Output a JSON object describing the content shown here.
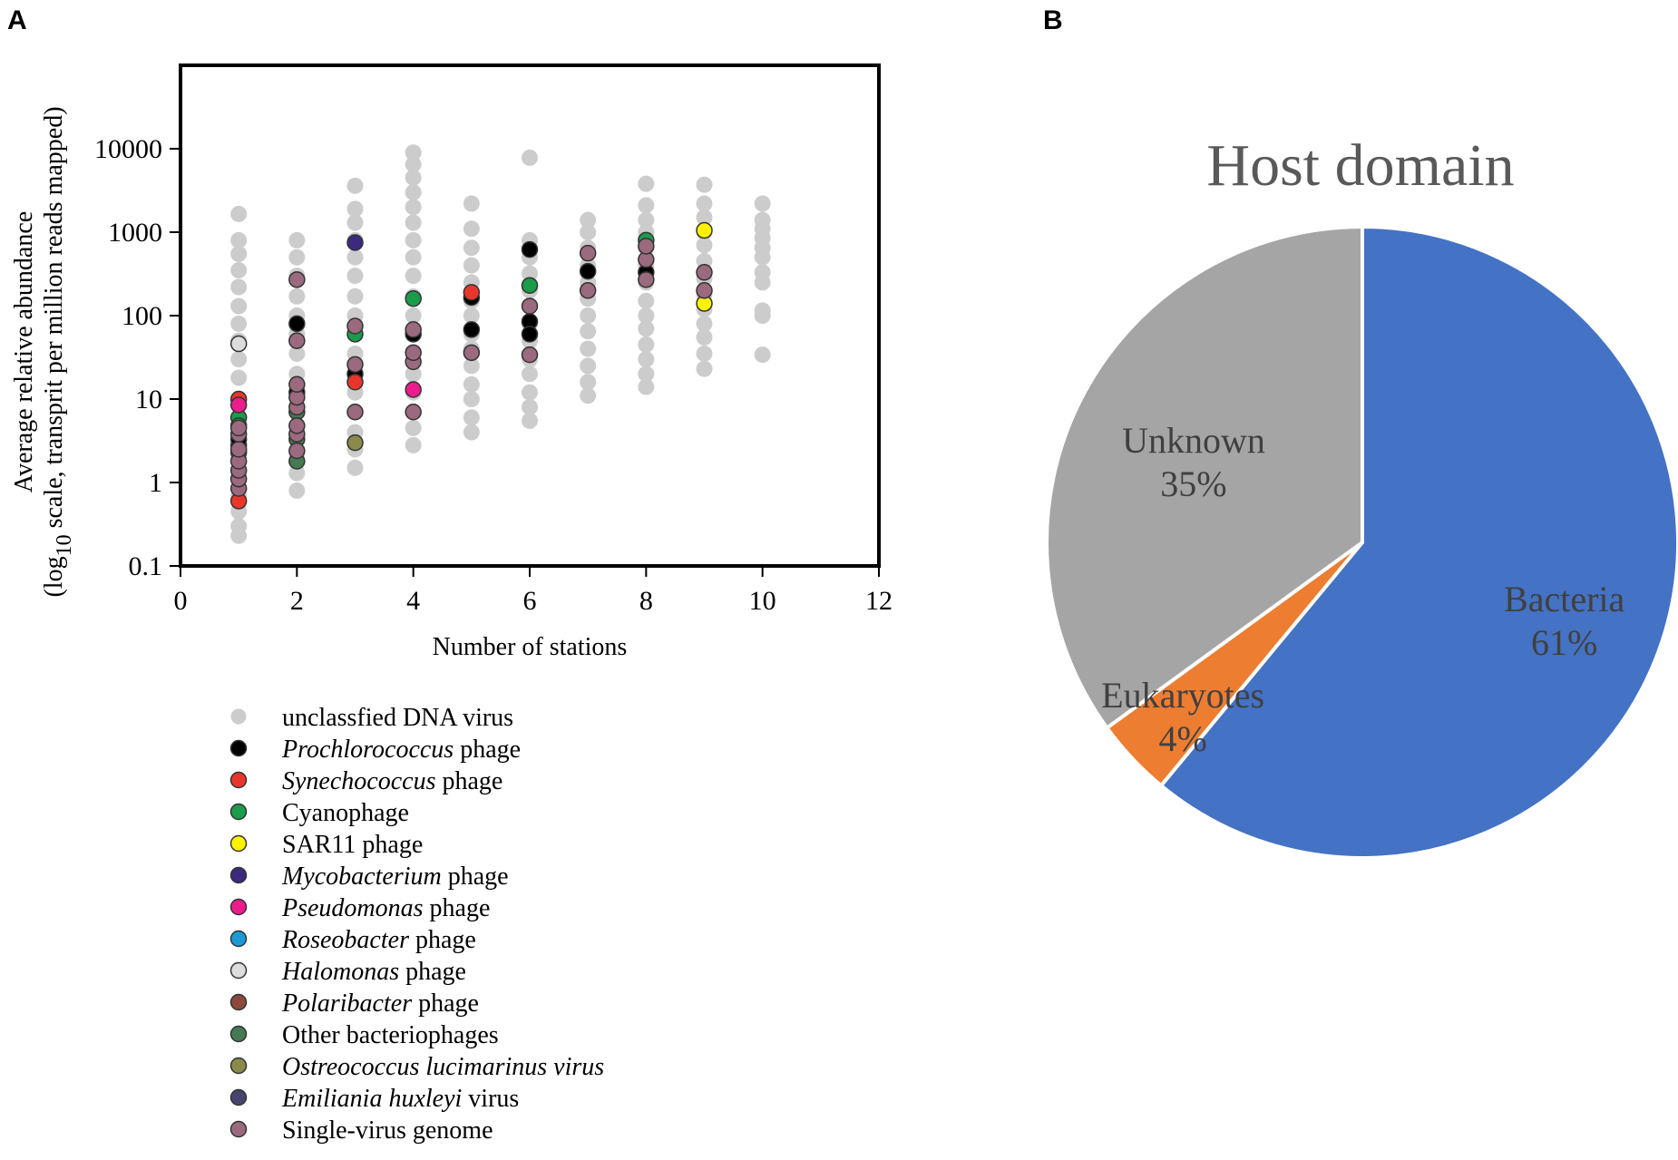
{
  "panels": {
    "a": "A",
    "b": "B"
  },
  "chart_data": [
    {
      "type": "scatter",
      "panel": "A",
      "title": "",
      "xlabel": "Number of stations",
      "ylabel_line1": "Average relative abundance",
      "ylabel_line2_prefix": "(log",
      "ylabel_line2_sub": "10",
      "ylabel_line2_rest": " scale, transprit per million reads mapped)",
      "yscale": "log",
      "xlim": [
        0,
        12
      ],
      "ylim": [
        0.1,
        100000
      ],
      "xticks": [
        0,
        2,
        4,
        6,
        8,
        10,
        12
      ],
      "xtick_labels": [
        "0",
        "2",
        "4",
        "6",
        "8",
        "10",
        "12"
      ],
      "yticks": [
        0.1,
        1,
        10,
        100,
        1000,
        10000
      ],
      "ytick_labels": [
        "0.1",
        "1",
        "10",
        "100",
        "1000",
        "10000"
      ],
      "legend_position": "below",
      "series": [
        {
          "name": "unclassfied DNA virus",
          "name_italic": "",
          "name_rest": "unclassfied DNA virus",
          "color": "#cccccc",
          "stroke": "none",
          "points": [
            [
              1,
              0.23
            ],
            [
              1,
              0.3
            ],
            [
              1,
              0.45
            ],
            [
              1,
              0.7
            ],
            [
              1,
              1.2
            ],
            [
              1,
              2
            ],
            [
              1,
              3.5
            ],
            [
              1,
              6
            ],
            [
              1,
              10
            ],
            [
              1,
              18
            ],
            [
              1,
              30
            ],
            [
              1,
              50
            ],
            [
              1,
              80
            ],
            [
              1,
              130
            ],
            [
              1,
              220
            ],
            [
              1,
              350
            ],
            [
              1,
              550
            ],
            [
              1,
              800
            ],
            [
              1,
              1650
            ],
            [
              2,
              0.8
            ],
            [
              2,
              1.3
            ],
            [
              2,
              2.2
            ],
            [
              2,
              4
            ],
            [
              2,
              7
            ],
            [
              2,
              12
            ],
            [
              2,
              20
            ],
            [
              2,
              35
            ],
            [
              2,
              60
            ],
            [
              2,
              100
            ],
            [
              2,
              170
            ],
            [
              2,
              300
            ],
            [
              2,
              500
            ],
            [
              2,
              800
            ],
            [
              3,
              1.5
            ],
            [
              3,
              2.5
            ],
            [
              3,
              4
            ],
            [
              3,
              7
            ],
            [
              3,
              12
            ],
            [
              3,
              20
            ],
            [
              3,
              35
            ],
            [
              3,
              60
            ],
            [
              3,
              100
            ],
            [
              3,
              170
            ],
            [
              3,
              300
            ],
            [
              3,
              500
            ],
            [
              3,
              800
            ],
            [
              3,
              1300
            ],
            [
              3,
              1900
            ],
            [
              3,
              3600
            ],
            [
              4,
              2.8
            ],
            [
              4,
              4.5
            ],
            [
              4,
              7
            ],
            [
              4,
              12
            ],
            [
              4,
              20
            ],
            [
              4,
              35
            ],
            [
              4,
              60
            ],
            [
              4,
              100
            ],
            [
              4,
              170
            ],
            [
              4,
              300
            ],
            [
              4,
              500
            ],
            [
              4,
              800
            ],
            [
              4,
              1300
            ],
            [
              4,
              2000
            ],
            [
              4,
              3000
            ],
            [
              4,
              4500
            ],
            [
              4,
              6500
            ],
            [
              4,
              9000
            ],
            [
              5,
              4
            ],
            [
              5,
              6
            ],
            [
              5,
              10
            ],
            [
              5,
              15
            ],
            [
              5,
              25
            ],
            [
              5,
              40
            ],
            [
              5,
              60
            ],
            [
              5,
              100
            ],
            [
              5,
              150
            ],
            [
              5,
              250
            ],
            [
              5,
              400
            ],
            [
              5,
              650
            ],
            [
              5,
              1100
            ],
            [
              5,
              2200
            ],
            [
              6,
              5.5
            ],
            [
              6,
              8
            ],
            [
              6,
              12
            ],
            [
              6,
              20
            ],
            [
              6,
              30
            ],
            [
              6,
              50
            ],
            [
              6,
              80
            ],
            [
              6,
              130
            ],
            [
              6,
              200
            ],
            [
              6,
              320
            ],
            [
              6,
              500
            ],
            [
              6,
              800
            ],
            [
              6,
              7800
            ],
            [
              7,
              11
            ],
            [
              7,
              16
            ],
            [
              7,
              25
            ],
            [
              7,
              40
            ],
            [
              7,
              65
            ],
            [
              7,
              100
            ],
            [
              7,
              160
            ],
            [
              7,
              250
            ],
            [
              7,
              400
            ],
            [
              7,
              650
            ],
            [
              7,
              1000
            ],
            [
              7,
              1400
            ],
            [
              8,
              14
            ],
            [
              8,
              20
            ],
            [
              8,
              30
            ],
            [
              8,
              45
            ],
            [
              8,
              70
            ],
            [
              8,
              100
            ],
            [
              8,
              150
            ],
            [
              8,
              250
            ],
            [
              8,
              400
            ],
            [
              8,
              650
            ],
            [
              8,
              1000
            ],
            [
              8,
              1400
            ],
            [
              8,
              2100
            ],
            [
              8,
              3800
            ],
            [
              9,
              23
            ],
            [
              9,
              35
            ],
            [
              9,
              55
            ],
            [
              9,
              80
            ],
            [
              9,
              120
            ],
            [
              9,
              180
            ],
            [
              9,
              280
            ],
            [
              9,
              450
            ],
            [
              9,
              700
            ],
            [
              9,
              1000
            ],
            [
              9,
              1500
            ],
            [
              9,
              2200
            ],
            [
              9,
              3700
            ],
            [
              10,
              34
            ],
            [
              10,
              100
            ],
            [
              10,
              115
            ],
            [
              10,
              250
            ],
            [
              10,
              330
            ],
            [
              10,
              500
            ],
            [
              10,
              650
            ],
            [
              10,
              850
            ],
            [
              10,
              1100
            ],
            [
              10,
              1400
            ],
            [
              10,
              2200
            ]
          ]
        },
        {
          "name": "Prochlorococcus phage",
          "name_italic": "Prochlorococcus",
          "name_rest": " phage",
          "color": "#000000",
          "stroke": "#333333",
          "points": [
            [
              1,
              2.8
            ],
            [
              1,
              3.3
            ],
            [
              2,
              80
            ],
            [
              2,
              12
            ],
            [
              3,
              20
            ],
            [
              4,
              60
            ],
            [
              5,
              165
            ],
            [
              5,
              68
            ],
            [
              6,
              620
            ],
            [
              6,
              85
            ],
            [
              6,
              60
            ],
            [
              7,
              340
            ],
            [
              8,
              330
            ]
          ]
        },
        {
          "name": "Synechococcus phage",
          "name_italic": "Synechococcus",
          "name_rest": " phage",
          "color": "#e8362d",
          "stroke": "#333333",
          "points": [
            [
              1,
              0.6
            ],
            [
              1,
              10
            ],
            [
              3,
              16
            ],
            [
              5,
              190
            ]
          ]
        },
        {
          "name": "Cyanophage",
          "name_italic": "",
          "name_rest": "Cyanophage",
          "color": "#1a9c4a",
          "stroke": "#333333",
          "points": [
            [
              1,
              6
            ],
            [
              1,
              4.8
            ],
            [
              3,
              60
            ],
            [
              4,
              160
            ],
            [
              6,
              230
            ],
            [
              8,
              800
            ]
          ]
        },
        {
          "name": "SAR11 phage",
          "name_italic": "",
          "name_rest": "SAR11 phage",
          "color": "#fff200",
          "stroke": "#333333",
          "points": [
            [
              9,
              1050
            ],
            [
              9,
              140
            ]
          ]
        },
        {
          "name": "Mycobacterium phage",
          "name_italic": "Mycobacterium",
          "name_rest": " phage",
          "color": "#3b2a7e",
          "stroke": "#333333",
          "points": [
            [
              3,
              750
            ]
          ]
        },
        {
          "name": "Pseudomonas phage",
          "name_italic": "Pseudomonas",
          "name_rest": " phage",
          "color": "#ec1c8c",
          "stroke": "#333333",
          "points": [
            [
              1,
              8.5
            ],
            [
              4,
              13
            ]
          ]
        },
        {
          "name": "Roseobacter phage",
          "name_italic": "Roseobacter",
          "name_rest": " phage",
          "color": "#1b9ad6",
          "stroke": "#333333",
          "points": []
        },
        {
          "name": "Halomonas phage",
          "name_italic": "Halomonas",
          "name_rest": " phage",
          "color": "#dddddd",
          "stroke": "#333333",
          "points": [
            [
              1,
              46
            ]
          ]
        },
        {
          "name": "Polaribacter phage",
          "name_italic": "Polaribacter",
          "name_rest": " phage",
          "color": "#8b4a3c",
          "stroke": "#333333",
          "points": []
        },
        {
          "name": "Other bacteriophages",
          "name_italic": "",
          "name_rest": "Other bacteriophages",
          "color": "#457a52",
          "stroke": "#333333",
          "points": [
            [
              1,
              2.3
            ],
            [
              2,
              1.8
            ],
            [
              2,
              7
            ],
            [
              2,
              3.3
            ]
          ]
        },
        {
          "name": "Ostreococcus lucimarinus virus",
          "name_italic": "Ostreococcus lucimarinus virus",
          "name_rest": "",
          "color": "#8a8a4a",
          "stroke": "#333333",
          "points": [
            [
              3,
              3
            ]
          ]
        },
        {
          "name": "Emiliania huxleyi virus",
          "name_italic": "Emiliania huxleyi",
          "name_rest": " virus",
          "color": "#454570",
          "stroke": "#333333",
          "points": []
        },
        {
          "name": "Single-virus genome",
          "name_italic": "",
          "name_rest": "Single-virus genome",
          "color": "#9b6a7f",
          "stroke": "#333333",
          "points": [
            [
              1,
              0.85
            ],
            [
              1,
              1.1
            ],
            [
              1,
              1.4
            ],
            [
              1,
              1.8
            ],
            [
              1,
              2.5
            ],
            [
              1,
              3.8
            ],
            [
              1,
              4.5
            ],
            [
              2,
              2.4
            ],
            [
              2,
              3.8
            ],
            [
              2,
              4.8
            ],
            [
              2,
              8
            ],
            [
              2,
              10.5
            ],
            [
              2,
              15
            ],
            [
              2,
              50
            ],
            [
              2,
              270
            ],
            [
              3,
              7
            ],
            [
              3,
              26
            ],
            [
              3,
              75
            ],
            [
              4,
              7
            ],
            [
              4,
              28
            ],
            [
              4,
              36
            ],
            [
              4,
              68
            ],
            [
              5,
              36
            ],
            [
              6,
              34
            ],
            [
              6,
              130
            ],
            [
              7,
              200
            ],
            [
              7,
              560
            ],
            [
              8,
              270
            ],
            [
              8,
              470
            ],
            [
              8,
              680
            ],
            [
              9,
              200
            ],
            [
              9,
              330
            ]
          ]
        }
      ]
    },
    {
      "type": "pie",
      "panel": "B",
      "title": "Host domain",
      "slices": [
        {
          "label": "Bacteria",
          "value": 61,
          "pct_label": "61%",
          "color": "#4472c4"
        },
        {
          "label": "Eukaryotes",
          "value": 4,
          "pct_label": "4%",
          "color": "#ed7d31"
        },
        {
          "label": "Unknown",
          "value": 35,
          "pct_label": "35%",
          "color": "#a5a5a5"
        }
      ]
    }
  ]
}
